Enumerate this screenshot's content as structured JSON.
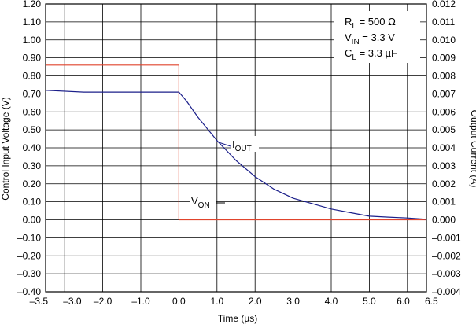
{
  "chart_data": {
    "type": "line",
    "title": "",
    "xlabel": "Time (µs)",
    "ylabel": "Control Input Voltage (V)",
    "y2label": "Output Current (A)",
    "xlim": [
      -3.5,
      6.5
    ],
    "ylim": [
      -0.4,
      1.2
    ],
    "y2lim": [
      -0.004,
      0.012
    ],
    "grid": true,
    "x_ticks": [
      "–3.5",
      "–3.0",
      "–2.0",
      "–1.0",
      "0.0",
      "1.0",
      "2.0",
      "3.0",
      "4.0",
      "5.0",
      "6.0",
      "6.5"
    ],
    "y_ticks": [
      "1.20",
      "1.10",
      "1.00",
      "0.90",
      "0.80",
      "0.70",
      "0.60",
      "0.50",
      "0.40",
      "0.30",
      "0.20",
      "0.10",
      "0.00",
      "–0.10",
      "–0.20",
      "–0.30",
      "–0.40"
    ],
    "y2_ticks": [
      "0.012",
      "0.011",
      "0.010",
      "0.009",
      "0.008",
      "0.007",
      "0.006",
      "0.005",
      "0.004",
      "0.003",
      "0.002",
      "0.001",
      "0.000",
      "–0.001",
      "–0.002",
      "–0.003",
      "–0.004"
    ],
    "series": [
      {
        "name": "VON",
        "label_main": "V",
        "label_sub": "ON",
        "axis": "left",
        "color": "#e0432c",
        "x": [
          -3.5,
          0.0,
          0.0,
          0.03,
          6.5
        ],
        "y": [
          0.86,
          0.86,
          0.0,
          0.0,
          0.0
        ]
      },
      {
        "name": "IOUT",
        "label_main": "I",
        "label_sub": "OUT",
        "axis": "right",
        "color": "#1b1f8a",
        "x": [
          -3.5,
          -2.5,
          -1.5,
          -0.5,
          0.0,
          0.2,
          0.5,
          1.0,
          1.5,
          2.0,
          2.5,
          3.0,
          3.5,
          4.0,
          4.5,
          5.0,
          5.5,
          6.0,
          6.5
        ],
        "y": [
          0.0072,
          0.0071,
          0.0071,
          0.0071,
          0.0071,
          0.0066,
          0.0057,
          0.0044,
          0.0033,
          0.0024,
          0.0017,
          0.0012,
          0.0009,
          0.0006,
          0.0004,
          0.0002,
          0.00015,
          0.0001,
          3e-05
        ]
      }
    ],
    "conditions": [
      {
        "main": "R",
        "sub": "L",
        "rest": " = 500 Ω"
      },
      {
        "main": "V",
        "sub": "IN",
        "rest": " = 3.3 V"
      },
      {
        "main": "C",
        "sub": "L",
        "rest": " = 3.3 µF"
      }
    ]
  }
}
